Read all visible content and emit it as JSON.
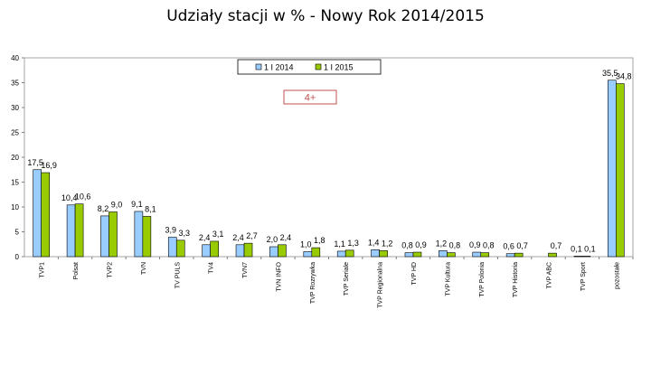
{
  "title": "Udziały stacji w % - Nowy Rok 2014/2015",
  "chart_data": {
    "type": "bar",
    "title": "Udziały stacji w % - Nowy Rok 2014/2015",
    "xlabel": "",
    "ylabel": "",
    "ylim": [
      0,
      40
    ],
    "yticks": [
      "0",
      "5",
      "10",
      "15",
      "20",
      "25",
      "30",
      "35",
      "40"
    ],
    "grid": false,
    "legend_position": "top-center",
    "annotation": "4+",
    "categories": [
      "TVP1",
      "Polsat",
      "TVP2",
      "TVN",
      "TV PULS",
      "TV4",
      "TVN7",
      "TVN INFO",
      "TVP Rozrywka",
      "TVP Seriale",
      "TVP Regionalna",
      "TVP HD",
      "TVP Kultura",
      "TVP Polonia",
      "TVP Historia",
      "TVP ABC",
      "TVP Sport",
      "pozostałe"
    ],
    "series": [
      {
        "name": "1 I 2014",
        "color": "#99ccff",
        "values": [
          17.5,
          10.4,
          8.2,
          9.1,
          3.9,
          2.4,
          2.4,
          2.0,
          1.0,
          1.1,
          1.4,
          0.8,
          1.2,
          0.9,
          0.6,
          null,
          0.1,
          35.5
        ],
        "labels": [
          "17,5",
          "10,4",
          "8,2",
          "9,1",
          "3,9",
          "2,4",
          "2,4",
          "2,0",
          "1,0",
          "1,1",
          "1,4",
          "0,8",
          "1,2",
          "0,9",
          "0,6",
          "",
          "0,1",
          "35,5"
        ]
      },
      {
        "name": "1 I 2015",
        "color": "#99cc00",
        "values": [
          16.9,
          10.6,
          9.0,
          8.1,
          3.3,
          3.1,
          2.7,
          2.4,
          1.8,
          1.3,
          1.2,
          0.9,
          0.8,
          0.8,
          0.7,
          0.7,
          0.1,
          34.8
        ],
        "labels": [
          "16,9",
          "10,6",
          "9,0",
          "8,1",
          "3,3",
          "3,1",
          "2,7",
          "2,4",
          "1,8",
          "1,3",
          "1,2",
          "0,9",
          "0,8",
          "0,8",
          "0,7",
          "0,7",
          "0,1",
          "34,8"
        ]
      }
    ]
  }
}
